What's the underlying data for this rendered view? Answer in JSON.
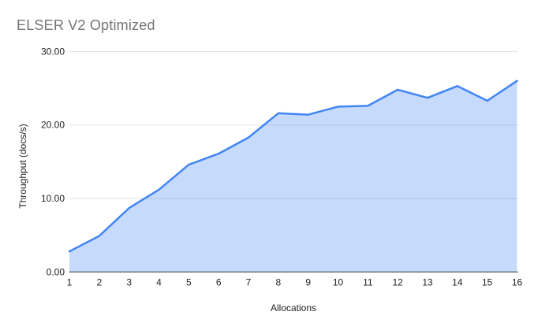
{
  "page": {
    "background_color": "#FFFFFF"
  },
  "chart_data": {
    "type": "area",
    "title": "ELSER V2 Optimized",
    "xlabel": "Allocations",
    "ylabel": "Throughput (docs/s)",
    "categories": [
      "1",
      "2",
      "3",
      "4",
      "5",
      "6",
      "7",
      "8",
      "9",
      "10",
      "11",
      "12",
      "13",
      "14",
      "15",
      "16"
    ],
    "values": [
      2.8,
      4.9,
      8.7,
      11.2,
      14.6,
      16.1,
      18.3,
      21.6,
      21.4,
      22.5,
      22.6,
      24.8,
      23.7,
      25.3,
      23.3,
      26.0
    ],
    "ylim": [
      0,
      30
    ],
    "y_ticks": {
      "values": [
        0,
        10,
        20,
        30
      ],
      "labels": [
        "0.00",
        "10.00",
        "20.00",
        "30.00"
      ]
    },
    "grid": true,
    "legend_position": "none",
    "colors": {
      "line": "#4285F4",
      "fill": "rgba(66,133,244,0.3)",
      "gridline": "#E0E0E0",
      "baseline": "#333333",
      "title_text": "#757575",
      "axis_text": "#1F1F1F"
    }
  }
}
